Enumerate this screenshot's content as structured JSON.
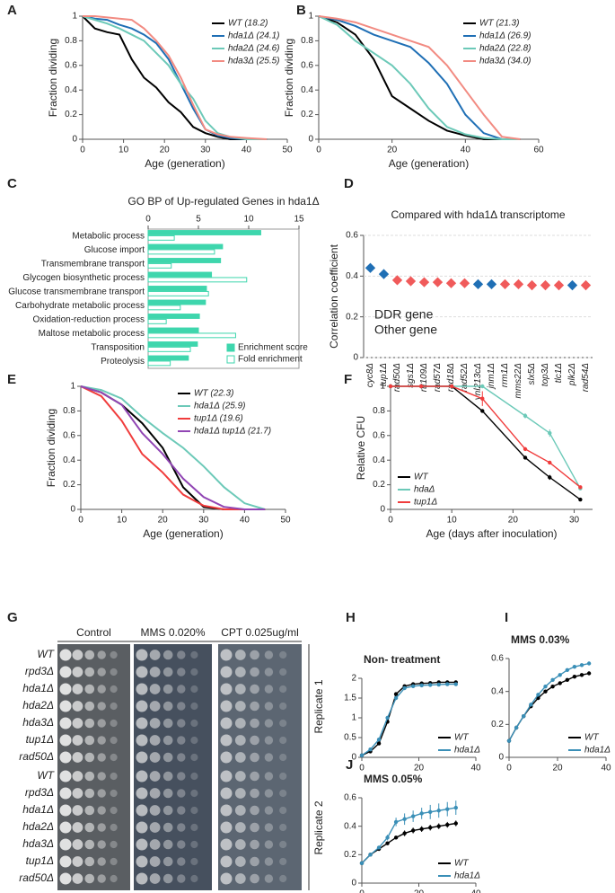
{
  "chart_data": [
    {
      "panel": "A",
      "type": "line",
      "x_label": "Age (generation)",
      "y_label": "Fraction dividing",
      "xlim": [
        0,
        50
      ],
      "xticks": [
        0,
        10,
        20,
        30,
        40,
        50
      ],
      "ylim": [
        0,
        1
      ],
      "yticks": [
        0,
        0.2,
        0.4,
        0.6,
        0.8,
        1
      ],
      "legend": "upper right",
      "x": [
        0,
        3,
        6,
        9,
        12,
        15,
        18,
        21,
        24,
        27,
        30,
        33,
        36,
        40,
        45
      ],
      "series": [
        {
          "name": "WT (18.2)",
          "color": "#000000",
          "values": [
            1,
            0.9,
            0.87,
            0.85,
            0.65,
            0.5,
            0.42,
            0.3,
            0.22,
            0.1,
            0.05,
            0.02,
            0,
            0,
            0
          ]
        },
        {
          "name": "hda1Δ (24.1)",
          "color": "#1f6fb5",
          "values": [
            1,
            0.98,
            0.97,
            0.93,
            0.9,
            0.85,
            0.78,
            0.65,
            0.45,
            0.25,
            0.08,
            0.03,
            0.01,
            0,
            0
          ]
        },
        {
          "name": "hda2Δ (24.6)",
          "color": "#6cc9b8",
          "values": [
            1,
            0.97,
            0.94,
            0.9,
            0.85,
            0.8,
            0.7,
            0.6,
            0.45,
            0.33,
            0.15,
            0.05,
            0.02,
            0,
            0
          ]
        },
        {
          "name": "hda3Δ (25.5)",
          "color": "#f28b82",
          "values": [
            1,
            1,
            0.99,
            0.98,
            0.97,
            0.9,
            0.8,
            0.68,
            0.5,
            0.28,
            0.08,
            0.04,
            0.02,
            0.01,
            0
          ]
        }
      ]
    },
    {
      "panel": "B",
      "type": "line",
      "x_label": "Age (generation)",
      "y_label": "Fraction dividing",
      "xlim": [
        0,
        60
      ],
      "xticks": [
        0,
        20,
        40,
        60
      ],
      "ylim": [
        0,
        1
      ],
      "yticks": [
        0,
        0.2,
        0.4,
        0.6,
        0.8,
        1
      ],
      "legend": "upper right",
      "x": [
        0,
        5,
        10,
        15,
        20,
        25,
        30,
        35,
        40,
        45,
        50,
        55
      ],
      "series": [
        {
          "name": "WT (21.3)",
          "color": "#000000",
          "values": [
            1,
            0.95,
            0.85,
            0.65,
            0.35,
            0.25,
            0.15,
            0.07,
            0.03,
            0,
            0,
            0
          ]
        },
        {
          "name": "hda1Δ (26.9)",
          "color": "#1f6fb5",
          "values": [
            1,
            0.97,
            0.92,
            0.85,
            0.8,
            0.75,
            0.62,
            0.45,
            0.2,
            0.05,
            0,
            0
          ]
        },
        {
          "name": "hda2Δ (22.8)",
          "color": "#6cc9b8",
          "values": [
            1,
            0.93,
            0.8,
            0.7,
            0.6,
            0.45,
            0.25,
            0.1,
            0.04,
            0.01,
            0,
            0
          ]
        },
        {
          "name": "hda3Δ (34.0)",
          "color": "#f28b82",
          "values": [
            1,
            0.98,
            0.95,
            0.9,
            0.85,
            0.8,
            0.75,
            0.6,
            0.4,
            0.2,
            0.02,
            0
          ]
        }
      ]
    },
    {
      "panel": "C",
      "type": "bar",
      "title": "GO BP of Up-regulated Genes in hda1Δ",
      "xlim": [
        0,
        15
      ],
      "xticks": [
        0,
        5,
        10,
        15
      ],
      "legend": "lower right",
      "categories": [
        "Metabolic process",
        "Glucose import",
        "Transmembrane transport",
        "Glycogen biosynthetic process",
        "Glucose transmembrane transport",
        "Carbohydrate metabolic process",
        "Oxidation-reduction process",
        "Maltose metabolic process",
        "Transposition",
        "Proteolysis"
      ],
      "series": [
        {
          "name": "Enrichment score",
          "color": "#3ed6ad",
          "values": [
            11.2,
            7.4,
            7.2,
            6.3,
            5.8,
            5.7,
            5.1,
            5.0,
            4.9,
            4.0
          ]
        },
        {
          "name": "Fold enrichment",
          "color": "#3ed6ad",
          "values": [
            2.6,
            6.6,
            2.3,
            9.8,
            6.0,
            3.2,
            1.8,
            8.7,
            4.2,
            2.2
          ]
        }
      ]
    },
    {
      "panel": "D",
      "type": "scatter",
      "title": "Compared with hda1Δ transcriptome",
      "y_label": "Correlation coefficient",
      "ylim": [
        0,
        0.6
      ],
      "yticks": [
        0,
        0.2,
        0.4,
        0.6
      ],
      "grid": true,
      "legend": "lower left",
      "categories": [
        "cyc8Δ",
        "tup1Δ",
        "rad50Δ",
        "sgs1Δ",
        "rtt109Δ",
        "rad57Δ",
        "rad18Δ",
        "rad52Δ",
        "ynl213cΔ",
        "jnm1Δ",
        "rrm1Δ",
        "mms22Δ",
        "slx5Δ",
        "top3Δ",
        "tlc1Δ",
        "plk2Δ",
        "rad54Δ"
      ],
      "series": [
        {
          "name": "DDR gene",
          "color": "#f05a5a",
          "values": [
            null,
            null,
            0.38,
            0.375,
            0.37,
            0.37,
            0.365,
            0.365,
            null,
            null,
            0.36,
            0.36,
            0.355,
            0.355,
            0.355,
            null,
            0.355
          ]
        },
        {
          "name": "Other gene",
          "color": "#1f6fb5",
          "values": [
            0.44,
            0.41,
            null,
            null,
            null,
            null,
            null,
            null,
            0.36,
            0.36,
            null,
            null,
            null,
            null,
            null,
            0.355,
            null
          ]
        }
      ]
    },
    {
      "panel": "E",
      "type": "line",
      "x_label": "Age (generation)",
      "y_label": "Fraction dividing",
      "xlim": [
        0,
        50
      ],
      "xticks": [
        0,
        10,
        20,
        30,
        40,
        50
      ],
      "ylim": [
        0,
        1
      ],
      "yticks": [
        0,
        0.2,
        0.4,
        0.6,
        0.8,
        1
      ],
      "legend": "upper right",
      "x": [
        0,
        5,
        10,
        15,
        20,
        25,
        30,
        35,
        40,
        45
      ],
      "series": [
        {
          "name": "WT (22.3)",
          "color": "#000000",
          "values": [
            1,
            0.95,
            0.85,
            0.7,
            0.5,
            0.18,
            0.02,
            0,
            0,
            0
          ]
        },
        {
          "name": "hda1Δ (25.9)",
          "color": "#6cc9b8",
          "values": [
            1,
            0.97,
            0.9,
            0.75,
            0.62,
            0.5,
            0.35,
            0.18,
            0.05,
            0
          ]
        },
        {
          "name": "tup1Δ (19.6)",
          "color": "#f03c3c",
          "values": [
            1,
            0.92,
            0.72,
            0.45,
            0.3,
            0.12,
            0.03,
            0,
            0,
            0
          ]
        },
        {
          "name": "hda1Δ tup1Δ (21.7)",
          "color": "#9146b4",
          "values": [
            1,
            0.95,
            0.85,
            0.62,
            0.45,
            0.25,
            0.1,
            0.02,
            0,
            0
          ]
        }
      ]
    },
    {
      "panel": "F",
      "type": "line",
      "x_label": "Age (days after inoculation)",
      "y_label": "Relative CFU",
      "xlim": [
        0,
        33
      ],
      "xticks": [
        0,
        10,
        20,
        30
      ],
      "ylim": [
        0,
        1
      ],
      "yticks": [
        0,
        0.2,
        0.4,
        0.6,
        0.8,
        1
      ],
      "legend": "lower left",
      "markers": true,
      "x": [
        0,
        5,
        10,
        15,
        22,
        26,
        31
      ],
      "series": [
        {
          "name": "WT",
          "color": "#000000",
          "values": [
            1,
            1,
            1,
            0.8,
            0.42,
            0.26,
            0.08
          ],
          "errors": [
            0,
            0,
            0,
            0,
            0.01,
            0.02,
            0.01
          ]
        },
        {
          "name": "hdaΔ",
          "color": "#6cc9b8",
          "values": [
            1,
            1,
            1,
            1,
            0.76,
            0.62,
            0.17
          ],
          "errors": [
            0,
            0,
            0,
            0.01,
            0.02,
            0.03,
            0.01
          ]
        },
        {
          "name": "tup1Δ",
          "color": "#f03c3c",
          "values": [
            1,
            1,
            1,
            0.9,
            0.49,
            0.38,
            0.18
          ],
          "errors": [
            0,
            0,
            0,
            0.06,
            0.01,
            0.01,
            0.01
          ]
        }
      ]
    },
    {
      "panel": "H",
      "type": "line",
      "title": "Non- treatment",
      "xlim": [
        0,
        40
      ],
      "xticks": [
        0,
        20,
        40
      ],
      "ylim": [
        0,
        2
      ],
      "yticks": [
        0,
        0.5,
        1,
        1.5,
        2
      ],
      "legend": "lower right",
      "markers": true,
      "x": [
        0,
        3,
        6,
        9,
        12,
        15,
        18,
        21,
        24,
        27,
        30,
        33
      ],
      "series": [
        {
          "name": "WT",
          "color": "#000000",
          "values": [
            0.05,
            0.15,
            0.35,
            0.9,
            1.6,
            1.8,
            1.85,
            1.87,
            1.88,
            1.9,
            1.9,
            1.9
          ]
        },
        {
          "name": "hda1Δ",
          "color": "#3a8fb7",
          "values": [
            0.05,
            0.2,
            0.45,
            1.0,
            1.5,
            1.75,
            1.8,
            1.82,
            1.83,
            1.84,
            1.85,
            1.85
          ]
        }
      ]
    },
    {
      "panel": "I",
      "type": "line",
      "title": "MMS 0.03%",
      "xlim": [
        0,
        40
      ],
      "xticks": [
        0,
        20,
        40
      ],
      "ylim": [
        0,
        0.6
      ],
      "yticks": [
        0,
        0.2,
        0.4,
        0.6
      ],
      "legend": "lower right",
      "markers": true,
      "x": [
        0,
        3,
        6,
        9,
        12,
        15,
        18,
        21,
        24,
        27,
        30,
        33
      ],
      "series": [
        {
          "name": "WT",
          "color": "#000000",
          "values": [
            0.1,
            0.18,
            0.25,
            0.31,
            0.36,
            0.4,
            0.43,
            0.45,
            0.47,
            0.49,
            0.5,
            0.51
          ]
        },
        {
          "name": "hda1Δ",
          "color": "#3a8fb7",
          "values": [
            0.1,
            0.18,
            0.25,
            0.32,
            0.38,
            0.43,
            0.47,
            0.5,
            0.53,
            0.55,
            0.56,
            0.57
          ]
        }
      ]
    },
    {
      "panel": "J",
      "type": "line",
      "title": "MMS 0.05%",
      "xlim": [
        0,
        40
      ],
      "xticks": [
        0,
        20,
        40
      ],
      "ylim": [
        0,
        0.6
      ],
      "yticks": [
        0,
        0.2,
        0.4,
        0.6
      ],
      "legend": "lower right",
      "markers": true,
      "x": [
        0,
        3,
        6,
        9,
        12,
        15,
        18,
        21,
        24,
        27,
        30,
        33
      ],
      "series": [
        {
          "name": "WT",
          "color": "#000000",
          "values": [
            0.14,
            0.2,
            0.24,
            0.28,
            0.32,
            0.35,
            0.37,
            0.38,
            0.39,
            0.4,
            0.41,
            0.42
          ],
          "errors": [
            0.01,
            0.01,
            0.01,
            0.01,
            0.01,
            0.02,
            0.02,
            0.02,
            0.02,
            0.02,
            0.02,
            0.02
          ]
        },
        {
          "name": "hda1Δ",
          "color": "#3a8fb7",
          "values": [
            0.14,
            0.2,
            0.25,
            0.32,
            0.43,
            0.45,
            0.47,
            0.49,
            0.5,
            0.51,
            0.52,
            0.53
          ],
          "errors": [
            0.01,
            0.01,
            0.01,
            0.02,
            0.03,
            0.04,
            0.04,
            0.04,
            0.05,
            0.05,
            0.05,
            0.05
          ]
        }
      ]
    }
  ],
  "panel_g": {
    "label": "G",
    "conditions": [
      "Control",
      "MMS 0.020%",
      "CPT 0.025ug/ml"
    ],
    "replicates": [
      {
        "name": "Replicate 1",
        "strains": [
          "WT",
          "rpd3Δ",
          "hda1Δ",
          "hda2Δ",
          "hda3Δ",
          "tup1Δ",
          "rad50Δ"
        ]
      },
      {
        "name": "Replicate 2",
        "strains": [
          "WT",
          "rpd3Δ",
          "hda1Δ",
          "hda2Δ",
          "hda3Δ",
          "tup1Δ",
          "rad50Δ"
        ]
      }
    ]
  }
}
